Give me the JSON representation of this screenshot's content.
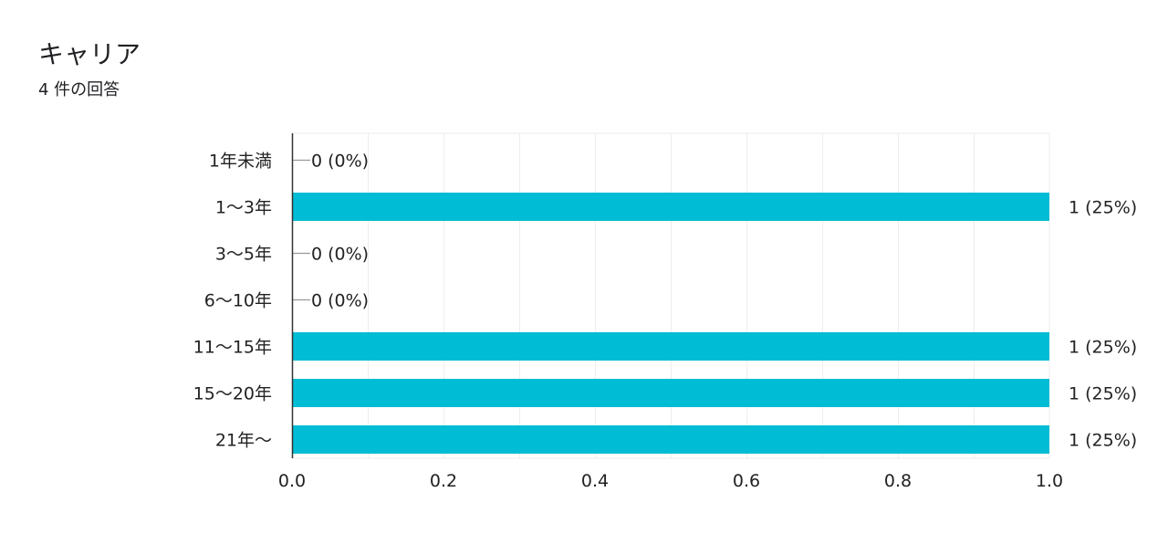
{
  "header": {
    "title": "キャリア",
    "subtitle": "4 件の回答"
  },
  "colors": {
    "bar": "#00bcd4",
    "grid": "#eeeeee",
    "axis": "#333333",
    "zero_stub": "#999999",
    "text": "#222222"
  },
  "chart_data": {
    "type": "bar",
    "orientation": "horizontal",
    "categories": [
      "1年未満",
      "1〜3年",
      "3〜5年",
      "6〜10年",
      "11〜15年",
      "15〜20年",
      "21年〜"
    ],
    "values": [
      0,
      1,
      0,
      0,
      1,
      1,
      1
    ],
    "data_labels": [
      "0 (0%)",
      "1 (25%)",
      "0 (0%)",
      "0 (0%)",
      "1 (25%)",
      "1 (25%)",
      "1 (25%)"
    ],
    "x_ticks": [
      "0.0",
      "0.2",
      "0.4",
      "0.6",
      "0.8",
      "1.0"
    ],
    "xlim": [
      0,
      1
    ],
    "grid": true,
    "legend": "none"
  }
}
